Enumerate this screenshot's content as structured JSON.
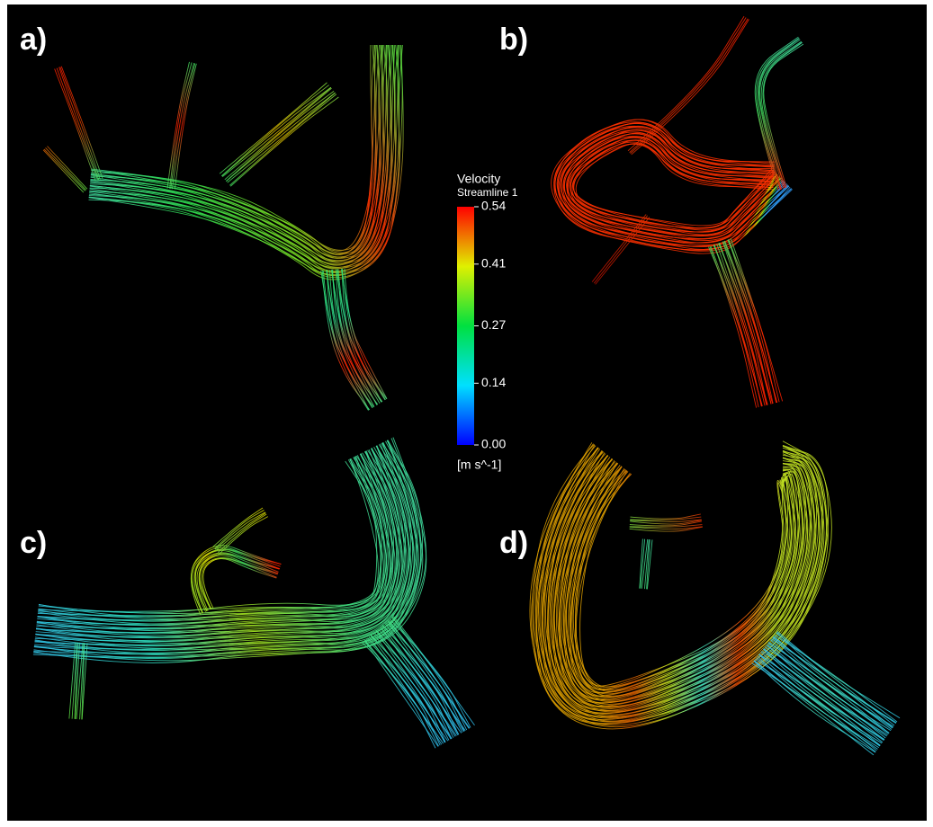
{
  "panels": [
    {
      "label": "a)"
    },
    {
      "label": "b)"
    },
    {
      "label": "c)"
    },
    {
      "label": "d)"
    }
  ],
  "colorbar": {
    "title": "Velocity",
    "subtitle": "Streamline 1",
    "unit": "[m s^-1]",
    "lim": [
      0,
      0.54
    ],
    "ticks": [
      0.54,
      0.41,
      0.27,
      0.14,
      {
        "value": 0,
        "label": "0.00"
      }
    ]
  }
}
